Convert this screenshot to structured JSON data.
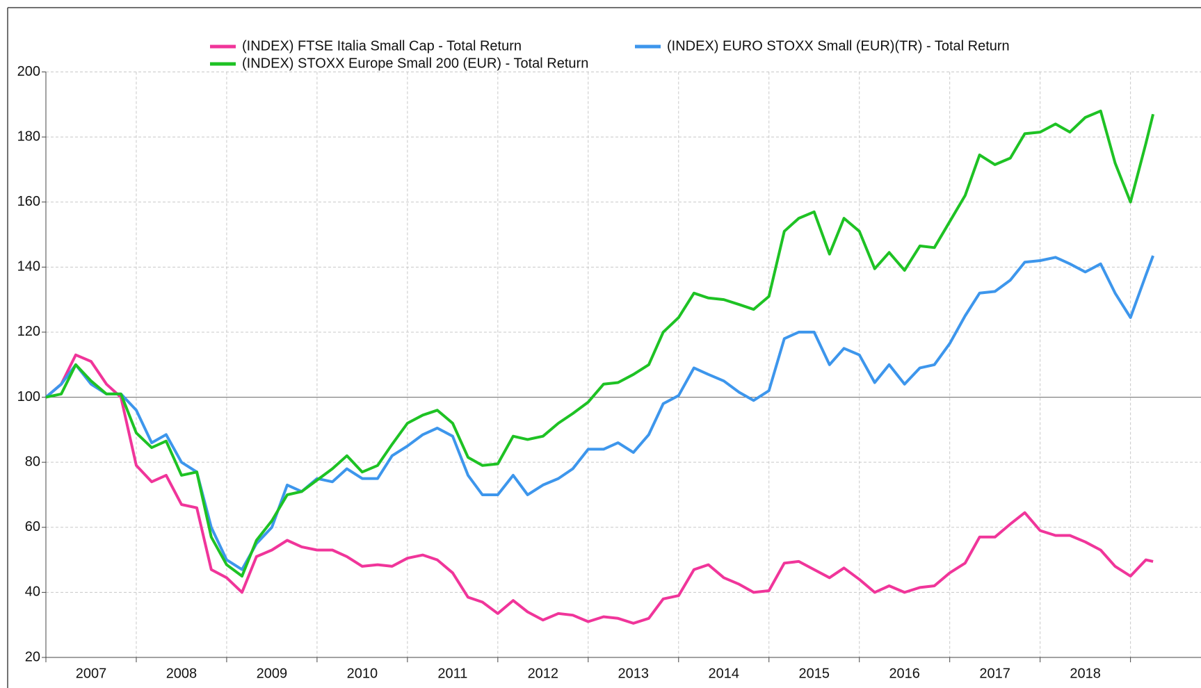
{
  "chart_data": {
    "type": "line",
    "categories": [
      "2007",
      "2008",
      "2009",
      "2010",
      "2011",
      "2012",
      "2013",
      "2014",
      "2015",
      "2016",
      "2017",
      "2018"
    ],
    "x": [
      2007,
      2007.17,
      2007.33,
      2007.5,
      2007.67,
      2007.83,
      2008,
      2008.17,
      2008.33,
      2008.5,
      2008.67,
      2008.83,
      2009,
      2009.17,
      2009.33,
      2009.5,
      2009.67,
      2009.83,
      2010,
      2010.17,
      2010.33,
      2010.5,
      2010.67,
      2010.83,
      2011,
      2011.17,
      2011.33,
      2011.5,
      2011.67,
      2011.83,
      2012,
      2012.17,
      2012.33,
      2012.5,
      2012.67,
      2012.83,
      2013,
      2013.17,
      2013.33,
      2013.5,
      2013.67,
      2013.83,
      2014,
      2014.17,
      2014.33,
      2014.5,
      2014.67,
      2014.83,
      2015,
      2015.17,
      2015.33,
      2015.5,
      2015.67,
      2015.83,
      2016,
      2016.17,
      2016.33,
      2016.5,
      2016.67,
      2016.83,
      2017,
      2017.17,
      2017.33,
      2017.5,
      2017.67,
      2017.83,
      2018,
      2018.17,
      2018.33,
      2018.5,
      2018.67,
      2018.83,
      2019,
      2019.17,
      2019.25
    ],
    "series": [
      {
        "name": "(INDEX) FTSE Italia Small Cap - Total Return",
        "color": "#f0359a",
        "values": [
          100,
          104,
          113,
          111,
          104,
          100,
          79,
          74,
          76,
          67,
          66,
          47,
          44.5,
          40,
          51,
          53,
          56,
          54,
          53,
          53,
          51,
          48,
          48.5,
          48,
          50.5,
          51.5,
          50,
          46,
          38.5,
          37,
          33.5,
          37.5,
          34,
          31.5,
          33.5,
          33,
          31,
          32.5,
          32,
          30.5,
          32,
          38,
          39,
          47,
          48.5,
          44.5,
          42.5,
          40,
          40.5,
          49,
          49.5,
          47,
          44.5,
          47.5,
          44,
          40,
          42,
          40,
          41.5,
          42,
          46,
          49,
          57,
          57,
          61,
          64.5,
          59,
          57.5,
          57.5,
          55.5,
          53,
          48,
          45,
          50,
          49.5
        ]
      },
      {
        "name": "(INDEX) EURO STOXX Small (EUR)(TR) - Total Return",
        "color": "#3d96ec",
        "values": [
          100,
          104,
          110,
          104,
          101,
          101,
          96,
          86,
          88.5,
          80,
          77,
          60,
          50,
          47,
          55,
          60,
          73,
          71,
          75,
          74,
          78,
          75,
          75,
          82,
          85,
          88.5,
          90.5,
          88,
          76,
          70,
          70,
          76,
          70,
          73,
          75,
          78,
          84,
          84,
          86,
          83,
          88.5,
          98,
          100.5,
          109,
          107,
          105,
          101.5,
          99,
          102,
          118,
          120,
          120,
          110,
          115,
          113,
          104.5,
          110,
          104,
          109,
          110,
          116.5,
          125,
          132,
          132.5,
          136,
          141.5,
          142,
          143,
          141,
          138.5,
          141,
          132,
          124.5,
          137.5,
          143.5
        ]
      },
      {
        "name": "(INDEX) STOXX Europe Small 200 (EUR) - Total Return",
        "color": "#1ec224",
        "values": [
          100,
          101,
          110,
          105,
          101,
          101,
          89,
          84.5,
          86.5,
          76,
          77,
          57,
          48.5,
          45,
          56,
          62,
          70,
          71,
          74.5,
          78,
          82,
          77,
          79,
          85.5,
          92,
          94.5,
          96,
          92,
          81.5,
          79,
          79.5,
          88,
          87,
          88,
          92,
          95,
          98.5,
          104,
          104.5,
          107,
          110,
          120,
          124.5,
          132,
          130.5,
          130,
          128.5,
          127,
          131,
          151,
          155,
          157,
          144,
          155,
          151,
          139.5,
          144.5,
          139,
          146.5,
          146,
          154,
          162,
          174.5,
          171.5,
          173.5,
          181,
          181.5,
          184,
          181.5,
          186,
          188,
          172,
          160,
          178,
          187
        ]
      }
    ],
    "xlim": [
      2007,
      2019.78
    ],
    "xticks": [
      2007,
      2008,
      2009,
      2010,
      2011,
      2012,
      2013,
      2014,
      2015,
      2016,
      2017,
      2018,
      2019
    ],
    "ylim": [
      20,
      200
    ],
    "yticks": [
      20,
      40,
      60,
      80,
      100,
      120,
      140,
      160,
      180,
      200
    ],
    "hline": 100,
    "grid": true
  }
}
